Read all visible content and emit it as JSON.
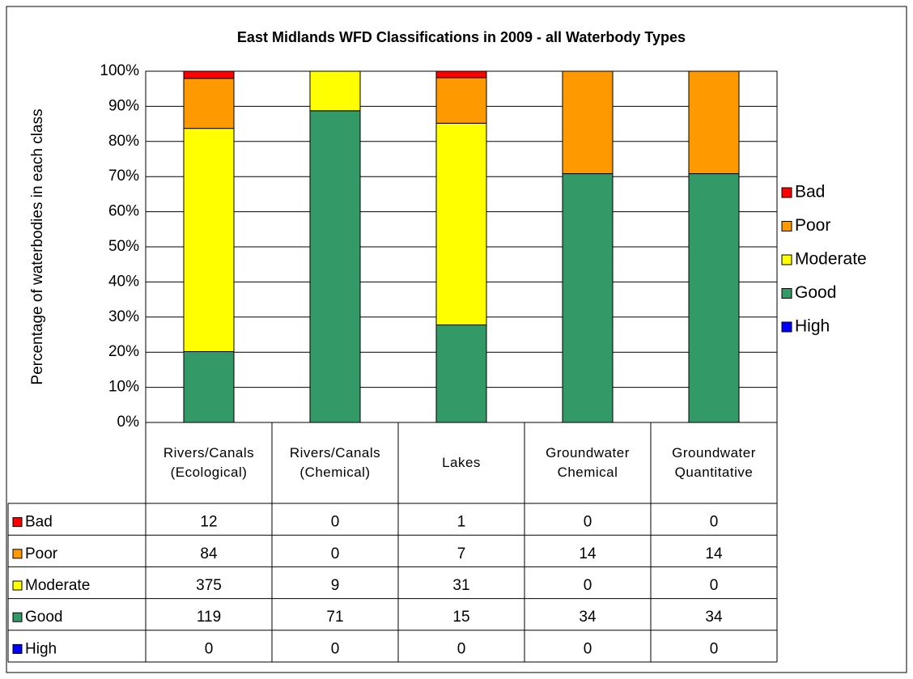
{
  "chart_data": {
    "type": "bar",
    "stacking": "percent",
    "title": "East Midlands WFD Classifications in 2009 - all Waterbody Types",
    "y_label": "Percentage of waterbodies in each class",
    "categories": [
      "Rivers/Canals (Ecological)",
      "Rivers/Canals (Chemical)",
      "Lakes",
      "Groundwater Chemical",
      "Groundwater Quantitative"
    ],
    "series": [
      {
        "name": "Bad",
        "color": "#ff0000",
        "values": [
          12,
          0,
          1,
          0,
          0
        ]
      },
      {
        "name": "Poor",
        "color": "#ff9900",
        "values": [
          84,
          0,
          7,
          14,
          14
        ]
      },
      {
        "name": "Moderate",
        "color": "#ffff00",
        "values": [
          375,
          9,
          31,
          0,
          0
        ]
      },
      {
        "name": "Good",
        "color": "#339966",
        "values": [
          119,
          71,
          15,
          34,
          34
        ]
      },
      {
        "name": "High",
        "color": "#0000ff",
        "values": [
          0,
          0,
          0,
          0,
          0
        ]
      }
    ],
    "ylim": [
      0,
      100
    ],
    "yticks": [
      {
        "value": 0,
        "label": "0%"
      },
      {
        "value": 10,
        "label": "10%"
      },
      {
        "value": 20,
        "label": "20%"
      },
      {
        "value": 30,
        "label": "30%"
      },
      {
        "value": 40,
        "label": "40%"
      },
      {
        "value": 50,
        "label": "50%"
      },
      {
        "value": 60,
        "label": "60%"
      },
      {
        "value": 70,
        "label": "70%"
      },
      {
        "value": 80,
        "label": "80%"
      },
      {
        "value": 90,
        "label": "90%"
      },
      {
        "value": 100,
        "label": "100%"
      }
    ],
    "grid": true,
    "legend": "right",
    "data_table": true
  }
}
